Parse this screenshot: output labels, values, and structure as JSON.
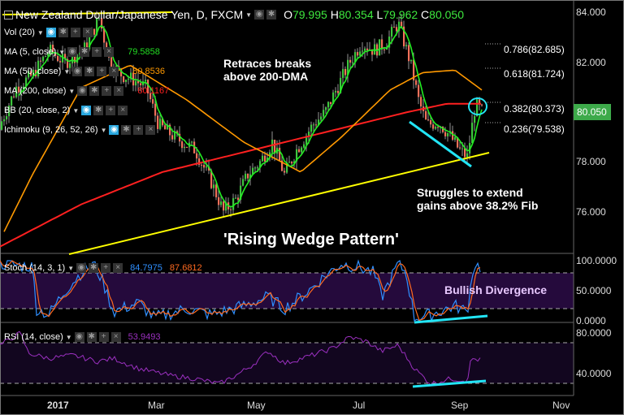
{
  "header": {
    "title": "New Zealand Dollar/Japanese Yen, D, FXCM",
    "ohlc": {
      "open_label": "O",
      "open": "79.995",
      "high_label": "H",
      "high": "80.354",
      "low_label": "L",
      "low": "79.962",
      "close_label": "C",
      "close": "80.050"
    }
  },
  "indicators": [
    {
      "label": "Vol (20)",
      "value": "",
      "color": "#ffffff"
    },
    {
      "label": "MA (5, close)",
      "value": "79.5858",
      "color": "#22dd22"
    },
    {
      "label": "MA (50, close)",
      "value": "80.8536",
      "color": "#ff9900"
    },
    {
      "label": "MA (200, close)",
      "value": "80.1167",
      "color": "#ff2020"
    },
    {
      "label": "BB (20, close, 2)",
      "value": "",
      "color": "#ffffff"
    },
    {
      "label": "Ichimoku (9, 26, 52, 26)",
      "value": "",
      "color": "#ffffff"
    }
  ],
  "annotations": {
    "retrace": [
      "Retraces breaks",
      "above 200-DMA"
    ],
    "struggle": [
      "Struggles to extend",
      "gains above 38.2% Fib"
    ],
    "pattern": "'Rising Wedge Pattern'",
    "divergence": "Bullish Divergence"
  },
  "fib_levels": [
    "0.786(82.685)",
    "0.618(81.724)",
    "0.382(80.373)",
    "0.236(79.538)"
  ],
  "price_axis": [
    "84.000",
    "82.000",
    "78.000",
    "76.000"
  ],
  "current_price": "80.050",
  "stoch": {
    "label": "Stoch (14, 3, 1)",
    "k": "84.7975",
    "d": "87.6812",
    "axis": [
      "100.0000",
      "50.0000",
      "0.0000"
    ]
  },
  "rsi": {
    "label": "RSI (14, close)",
    "value": "53.9493",
    "axis": [
      "80.0000",
      "40.0000"
    ]
  },
  "time_axis": [
    "2017",
    "Mar",
    "May",
    "Jul",
    "Sep",
    "Nov"
  ],
  "colors": {
    "bull": "#3ec63e",
    "bear": "#f0705a",
    "ma5": "#22ee22",
    "ma50": "#ff9900",
    "ma200": "#ff2020",
    "trend": "#ffff00",
    "wedge": "#22e5f5",
    "stoch_k": "#2f8fff",
    "stoch_d": "#ff6a20",
    "rsi": "#9b30c0",
    "price_badge": "#3daa4a"
  }
}
